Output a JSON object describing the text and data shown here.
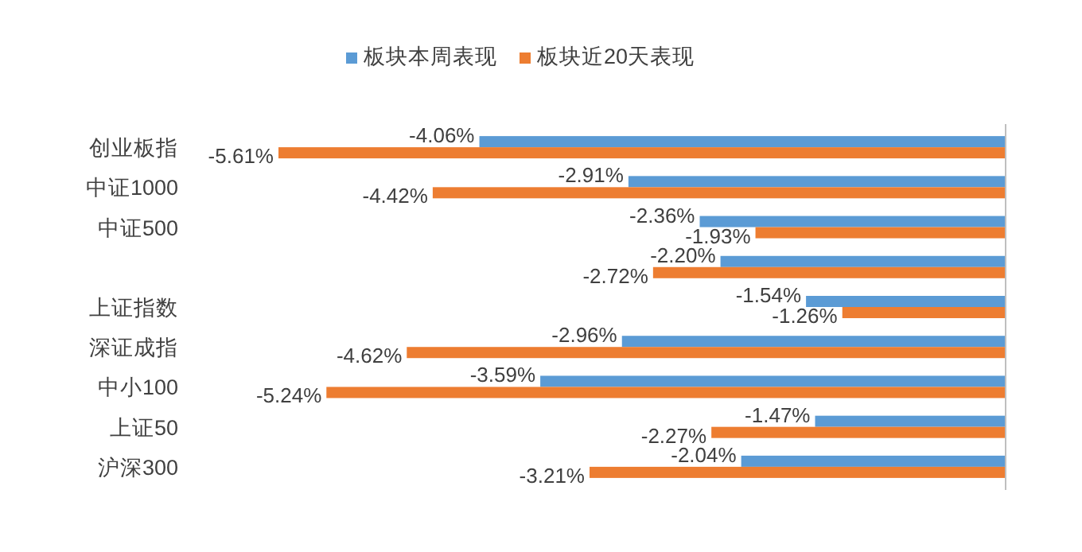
{
  "chart_data": {
    "type": "bar",
    "orientation": "horizontal",
    "relative": false,
    "legend": "top",
    "categories": [
      "创业板指",
      "中证1000",
      "中证500",
      null,
      "上证指数",
      "深证成指",
      "中小100",
      "上证50",
      "沪深300"
    ],
    "series": [
      {
        "name": "板块本周表现",
        "color": "#5b9bd5",
        "values": [
          -4.06,
          -2.91,
          -2.36,
          -2.2,
          -1.54,
          -2.96,
          -3.59,
          -1.47,
          -2.04
        ],
        "value_labels": [
          "-4.06%",
          "-2.91%",
          "-2.36%",
          "-2.20%",
          "-1.54%",
          "-2.96%",
          "-3.59%",
          "-1.47%",
          "-2.04%"
        ]
      },
      {
        "name": "板块近20天表现",
        "color": "#ed7d31",
        "values": [
          -5.61,
          -4.42,
          -1.93,
          -2.72,
          -1.26,
          -4.62,
          -5.24,
          -2.27,
          -3.21
        ],
        "value_labels": [
          "-5.61%",
          "-4.42%",
          "-1.93%",
          "-2.72%",
          "-1.26%",
          "-4.62%",
          "-5.24%",
          "-2.27%",
          "-3.21%"
        ]
      }
    ]
  }
}
